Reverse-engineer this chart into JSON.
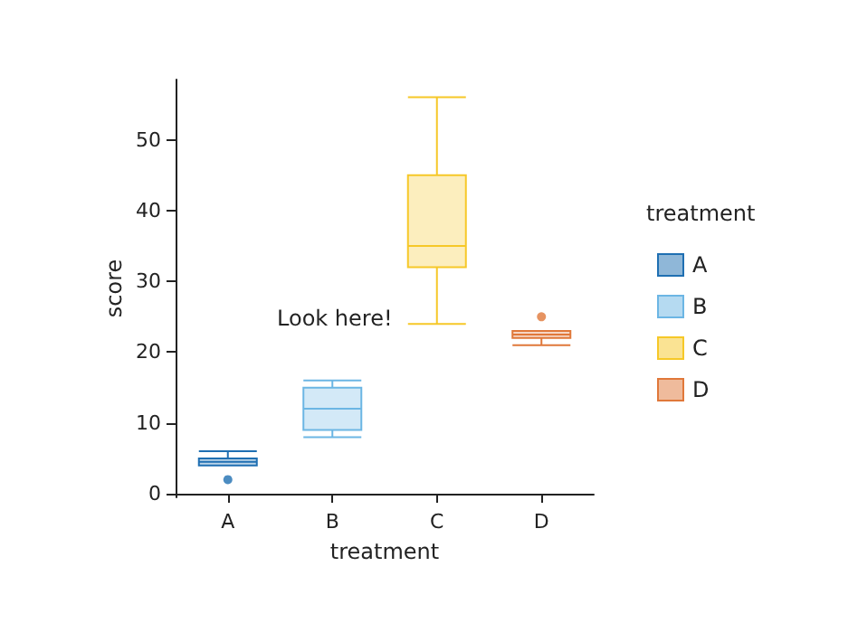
{
  "chart_data": {
    "type": "box",
    "xlabel": "treatment",
    "ylabel": "score",
    "legend_title": "treatment",
    "legend": "right",
    "categories": [
      "A",
      "B",
      "C",
      "D"
    ],
    "series": [
      {
        "name": "A",
        "color": "#1f6fb2",
        "boxes": [
          {
            "low": 4,
            "q1": 4,
            "median": 4.5,
            "q3": 5,
            "high": 6,
            "outliers": [
              2
            ]
          },
          null,
          null,
          null
        ]
      },
      {
        "name": "B",
        "color": "#6cb6e4",
        "boxes": [
          null,
          {
            "low": 8,
            "q1": 9,
            "median": 12,
            "q3": 15,
            "high": 16
          },
          null,
          null
        ]
      },
      {
        "name": "C",
        "color": "#f6c828",
        "boxes": [
          null,
          null,
          {
            "low": 24,
            "q1": 32,
            "median": 35,
            "q3": 45,
            "high": 56
          },
          null
        ]
      },
      {
        "name": "D",
        "color": "#e0783a",
        "boxes": [
          null,
          null,
          null,
          {
            "low": 21,
            "q1": 22,
            "median": 22.5,
            "q3": 23,
            "high": 23,
            "outliers": [
              25
            ]
          }
        ]
      }
    ],
    "ylim": [
      -0.5,
      58.5
    ],
    "yticks": [
      0,
      10,
      20,
      30,
      40,
      50
    ],
    "annotations": [
      "Look here!"
    ]
  }
}
